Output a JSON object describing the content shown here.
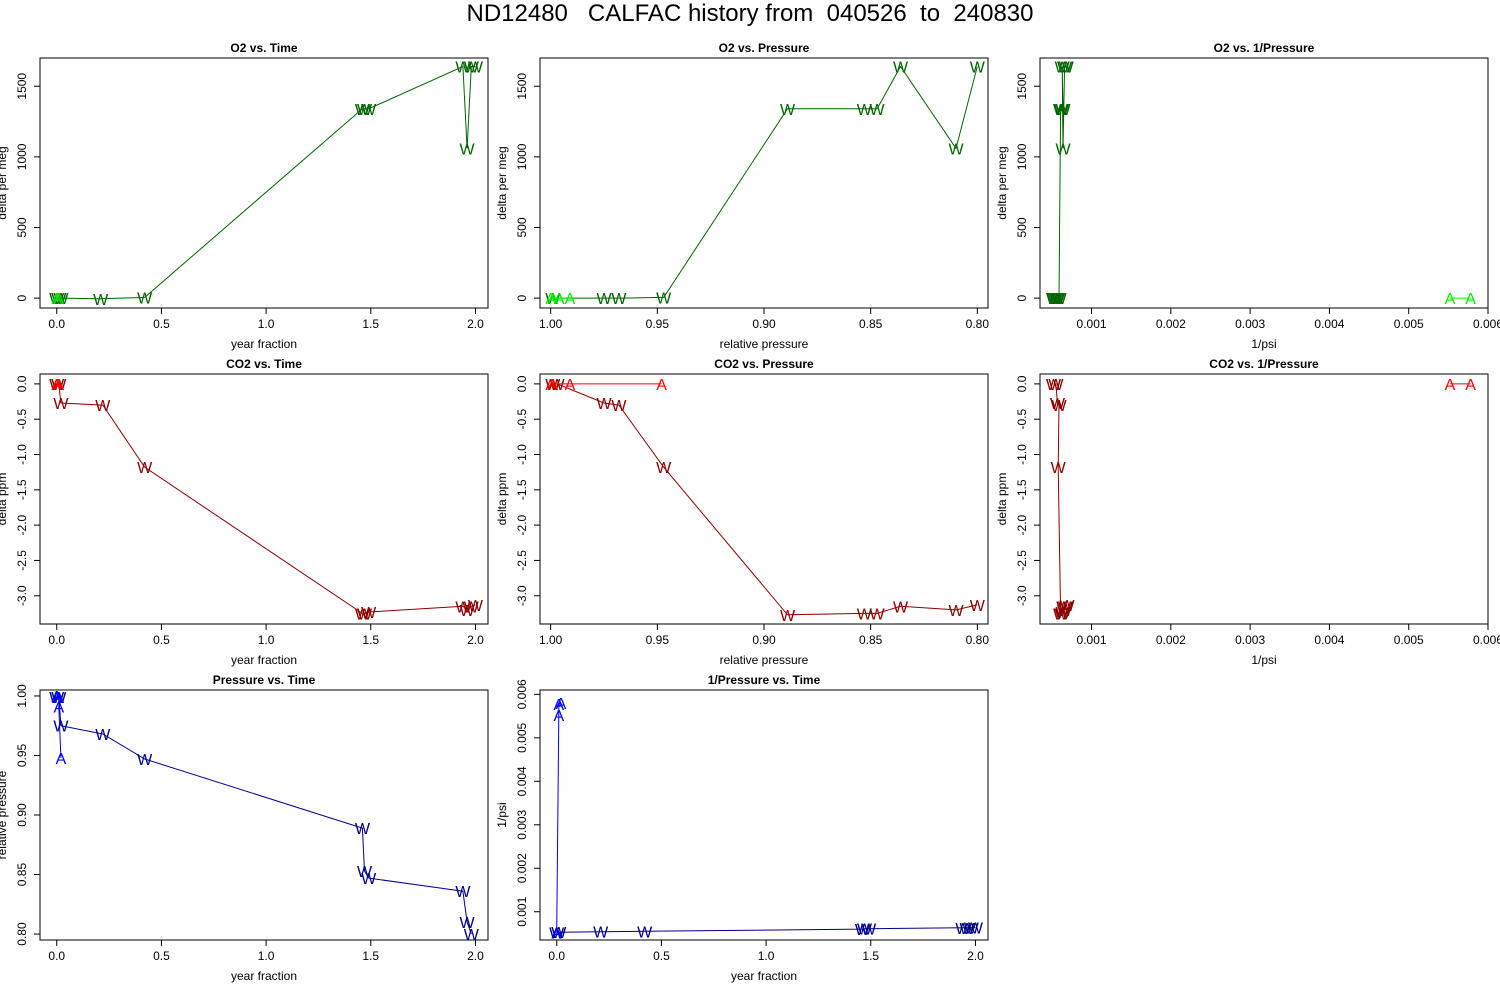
{
  "title": "ND12480   CALFAC history from  040526  to  240830",
  "colors": {
    "o2_w": "#006400",
    "o2_a": "#00ee00",
    "co2_w": "#8b0000",
    "co2_a": "#ff0000",
    "p_w": "#00008b",
    "p_a": "#0000ff"
  },
  "chart_data": [
    {
      "id": "o2-time",
      "type": "line",
      "title": "O2 vs. Time",
      "xlabel": "year fraction",
      "ylabel": "delta per meg",
      "xlim": [
        -0.08,
        2.06
      ],
      "ylim": [
        -70,
        1700
      ],
      "xticks": [
        0.0,
        0.5,
        1.0,
        1.5,
        2.0
      ],
      "xtick_labels": [
        "0.0",
        "0.5",
        "1.0",
        "1.5",
        "2.0"
      ],
      "yticks": [
        0,
        500,
        1000,
        1500
      ],
      "ytick_labels": [
        "0",
        "500",
        "1000",
        "1500"
      ],
      "series": [
        {
          "name": "W",
          "color": "o2_w",
          "points": [
            [
              0.0,
              0
            ],
            [
              0.01,
              0
            ],
            [
              0.02,
              0
            ],
            [
              0.21,
              -5
            ],
            [
              0.42,
              5
            ],
            [
              1.46,
              1340
            ],
            [
              1.47,
              1340
            ],
            [
              1.49,
              1340
            ],
            [
              1.94,
              1640
            ],
            [
              1.96,
              1060
            ],
            [
              1.98,
              1640
            ],
            [
              2.0,
              1640
            ]
          ]
        },
        {
          "name": "A",
          "color": "o2_a",
          "points": [
            [
              0.0,
              0
            ],
            [
              0.01,
              0
            ]
          ]
        }
      ]
    },
    {
      "id": "o2-pressure",
      "type": "line",
      "title": "O2 vs. Pressure",
      "xlabel": "relative pressure",
      "ylabel": "delta per meg",
      "xlim": [
        1.005,
        0.795
      ],
      "ylim": [
        -70,
        1700
      ],
      "xticks": [
        1.0,
        0.95,
        0.9,
        0.85,
        0.8
      ],
      "xtick_labels": [
        "1.00",
        "0.95",
        "0.90",
        "0.85",
        "0.80"
      ],
      "yticks": [
        0,
        500,
        1000,
        1500
      ],
      "ytick_labels": [
        "0",
        "500",
        "1000",
        "1500"
      ],
      "series": [
        {
          "name": "W",
          "color": "o2_w",
          "points": [
            [
              0.999,
              0
            ],
            [
              0.975,
              0
            ],
            [
              0.968,
              0
            ],
            [
              0.947,
              5
            ],
            [
              0.889,
              1340
            ],
            [
              0.853,
              1340
            ],
            [
              0.847,
              1340
            ],
            [
              0.836,
              1640
            ],
            [
              0.81,
              1060
            ],
            [
              0.8,
              1640
            ]
          ]
        },
        {
          "name": "A",
          "color": "o2_a",
          "points": [
            [
              1.0,
              0
            ],
            [
              0.999,
              0
            ],
            [
              0.996,
              0
            ],
            [
              0.991,
              0
            ]
          ]
        }
      ]
    },
    {
      "id": "o2-invpressure",
      "type": "line",
      "title": "O2 vs. 1/Pressure",
      "xlabel": "1/psi",
      "ylabel": "delta per meg",
      "xlim": [
        0.00035,
        0.006
      ],
      "ylim": [
        -70,
        1700
      ],
      "xticks": [
        0.001,
        0.002,
        0.003,
        0.004,
        0.005,
        0.006
      ],
      "xtick_labels": [
        "0.001",
        "0.002",
        "0.003",
        "0.004",
        "0.005",
        "0.006"
      ],
      "yticks": [
        0,
        500,
        1000,
        1500
      ],
      "ytick_labels": [
        "0",
        "500",
        "1000",
        "1500"
      ],
      "series": [
        {
          "name": "W",
          "color": "o2_w",
          "points": [
            [
              0.00052,
              0
            ],
            [
              0.00054,
              0
            ],
            [
              0.00056,
              0
            ],
            [
              0.00057,
              0
            ],
            [
              0.00059,
              0
            ],
            [
              0.00061,
              1340
            ],
            [
              0.00062,
              1340
            ],
            [
              0.00064,
              1340
            ],
            [
              0.00063,
              1640
            ],
            [
              0.00064,
              1060
            ],
            [
              0.00066,
              1640
            ],
            [
              0.00068,
              1640
            ]
          ]
        },
        {
          "name": "A",
          "color": "o2_a",
          "points": [
            [
              0.00552,
              0
            ],
            [
              0.00578,
              0
            ]
          ]
        }
      ]
    },
    {
      "id": "co2-time",
      "type": "line",
      "title": "CO2 vs. Time",
      "xlabel": "year fraction",
      "ylabel": "delta ppm",
      "xlim": [
        -0.08,
        2.06
      ],
      "ylim": [
        -3.4,
        0.14
      ],
      "xticks": [
        0.0,
        0.5,
        1.0,
        1.5,
        2.0
      ],
      "xtick_labels": [
        "0.0",
        "0.5",
        "1.0",
        "1.5",
        "2.0"
      ],
      "yticks": [
        0.0,
        -0.5,
        -1.0,
        -1.5,
        -2.0,
        -2.5,
        -3.0
      ],
      "ytick_labels": [
        "0.0",
        "-0.5",
        "-1.0",
        "-1.5",
        "-2.0",
        "-2.5",
        "-3.0"
      ],
      "series": [
        {
          "name": "W",
          "color": "co2_w",
          "points": [
            [
              0.0,
              0.0
            ],
            [
              0.01,
              0.0
            ],
            [
              0.02,
              -0.27
            ],
            [
              0.22,
              -0.3
            ],
            [
              0.42,
              -1.18
            ],
            [
              1.46,
              -3.25
            ],
            [
              1.47,
              -3.25
            ],
            [
              1.49,
              -3.23
            ],
            [
              1.94,
              -3.15
            ],
            [
              1.96,
              -3.2
            ],
            [
              1.98,
              -3.15
            ],
            [
              2.0,
              -3.13
            ]
          ]
        },
        {
          "name": "A",
          "color": "co2_a",
          "points": [
            [
              0.0,
              0.0
            ],
            [
              0.01,
              0.0
            ]
          ]
        }
      ]
    },
    {
      "id": "co2-pressure",
      "type": "line",
      "title": "CO2 vs. Pressure",
      "xlabel": "relative pressure",
      "ylabel": "delta ppm",
      "xlim": [
        1.005,
        0.795
      ],
      "ylim": [
        -3.4,
        0.14
      ],
      "xticks": [
        1.0,
        0.95,
        0.9,
        0.85,
        0.8
      ],
      "xtick_labels": [
        "1.00",
        "0.95",
        "0.90",
        "0.85",
        "0.80"
      ],
      "yticks": [
        0.0,
        -0.5,
        -1.0,
        -1.5,
        -2.0,
        -2.5,
        -3.0
      ],
      "ytick_labels": [
        "0.0",
        "-0.5",
        "-1.0",
        "-1.5",
        "-2.0",
        "-2.5",
        "-3.0"
      ],
      "series": [
        {
          "name": "W",
          "color": "co2_w",
          "points": [
            [
              0.999,
              0.0
            ],
            [
              0.997,
              0.0
            ],
            [
              0.975,
              -0.27
            ],
            [
              0.968,
              -0.3
            ],
            [
              0.947,
              -1.18
            ],
            [
              0.889,
              -3.27
            ],
            [
              0.853,
              -3.25
            ],
            [
              0.847,
              -3.25
            ],
            [
              0.836,
              -3.15
            ],
            [
              0.81,
              -3.2
            ],
            [
              0.8,
              -3.13
            ]
          ]
        },
        {
          "name": "A",
          "color": "co2_a",
          "points": [
            [
              1.0,
              0.0
            ],
            [
              0.999,
              0.0
            ],
            [
              0.991,
              0.0
            ],
            [
              0.948,
              0.0
            ]
          ]
        }
      ]
    },
    {
      "id": "co2-invpressure",
      "type": "line",
      "title": "CO2 vs. 1/Pressure",
      "xlabel": "1/psi",
      "ylabel": "delta ppm",
      "xlim": [
        0.00035,
        0.006
      ],
      "ylim": [
        -3.4,
        0.14
      ],
      "xticks": [
        0.001,
        0.002,
        0.003,
        0.004,
        0.005,
        0.006
      ],
      "xtick_labels": [
        "0.001",
        "0.002",
        "0.003",
        "0.004",
        "0.005",
        "0.006"
      ],
      "yticks": [
        0.0,
        -0.5,
        -1.0,
        -1.5,
        -2.0,
        -2.5,
        -3.0
      ],
      "ytick_labels": [
        "0.0",
        "-0.5",
        "-1.0",
        "-1.5",
        "-2.0",
        "-2.5",
        "-3.0"
      ],
      "series": [
        {
          "name": "W",
          "color": "co2_w",
          "points": [
            [
              0.00052,
              0.0
            ],
            [
              0.00055,
              0.0
            ],
            [
              0.00057,
              -0.27
            ],
            [
              0.00059,
              -0.3
            ],
            [
              0.00058,
              -1.18
            ],
            [
              0.00061,
              -3.25
            ],
            [
              0.00063,
              -3.25
            ],
            [
              0.00064,
              -3.23
            ],
            [
              0.00065,
              -3.15
            ],
            [
              0.00066,
              -3.2
            ],
            [
              0.00067,
              -3.15
            ],
            [
              0.00069,
              -3.13
            ]
          ]
        },
        {
          "name": "A",
          "color": "co2_a",
          "points": [
            [
              0.00552,
              0.0
            ],
            [
              0.00578,
              0.0
            ]
          ]
        }
      ]
    },
    {
      "id": "pressure-time",
      "type": "line",
      "title": "Pressure vs. Time",
      "xlabel": "year fraction",
      "ylabel": "relative pressure",
      "xlim": [
        -0.08,
        2.06
      ],
      "ylim": [
        0.795,
        1.005
      ],
      "xticks": [
        0.0,
        0.5,
        1.0,
        1.5,
        2.0
      ],
      "xtick_labels": [
        "0.0",
        "0.5",
        "1.0",
        "1.5",
        "2.0"
      ],
      "yticks": [
        0.8,
        0.85,
        0.9,
        0.95,
        1.0
      ],
      "ytick_labels": [
        "0.80",
        "0.85",
        "0.90",
        "0.95",
        "1.00"
      ],
      "series": [
        {
          "name": "W",
          "color": "p_w",
          "points": [
            [
              0.0,
              0.999
            ],
            [
              0.01,
              0.999
            ],
            [
              0.02,
              0.975
            ],
            [
              0.22,
              0.968
            ],
            [
              0.42,
              0.947
            ],
            [
              1.46,
              0.889
            ],
            [
              1.47,
              0.853
            ],
            [
              1.49,
              0.847
            ],
            [
              1.94,
              0.836
            ],
            [
              1.96,
              0.81
            ],
            [
              1.98,
              0.8
            ]
          ]
        },
        {
          "name": "A",
          "color": "p_a",
          "points": [
            [
              0.0,
              1.0
            ],
            [
              0.01,
              0.999
            ],
            [
              0.01,
              0.991
            ],
            [
              0.02,
              0.948
            ]
          ]
        }
      ]
    },
    {
      "id": "invpressure-time",
      "type": "line",
      "title": "1/Pressure vs. Time",
      "xlabel": "year fraction",
      "ylabel": "1/psi",
      "xlim": [
        -0.08,
        2.06
      ],
      "ylim": [
        0.00035,
        0.0061
      ],
      "xticks": [
        0.0,
        0.5,
        1.0,
        1.5,
        2.0
      ],
      "xtick_labels": [
        "0.0",
        "0.5",
        "1.0",
        "1.5",
        "2.0"
      ],
      "yticks": [
        0.001,
        0.002,
        0.003,
        0.004,
        0.005,
        0.006
      ],
      "ytick_labels": [
        "0.001",
        "0.002",
        "0.003",
        "0.004",
        "0.005",
        "0.006"
      ],
      "series": [
        {
          "name": "W",
          "color": "p_w",
          "points": [
            [
              0.0,
              0.00052
            ],
            [
              0.01,
              0.00053
            ],
            [
              0.21,
              0.00054
            ],
            [
              0.42,
              0.00055
            ],
            [
              1.46,
              0.0006
            ],
            [
              1.47,
              0.00061
            ],
            [
              1.49,
              0.00061
            ],
            [
              1.94,
              0.00063
            ],
            [
              1.96,
              0.00063
            ],
            [
              1.98,
              0.00064
            ],
            [
              2.0,
              0.00064
            ]
          ]
        },
        {
          "name": "A",
          "color": "p_a",
          "points": [
            [
              0.0,
              0.00052
            ],
            [
              0.01,
              0.00552
            ],
            [
              0.01,
              0.00578
            ],
            [
              0.02,
              0.0058
            ]
          ]
        }
      ]
    }
  ]
}
